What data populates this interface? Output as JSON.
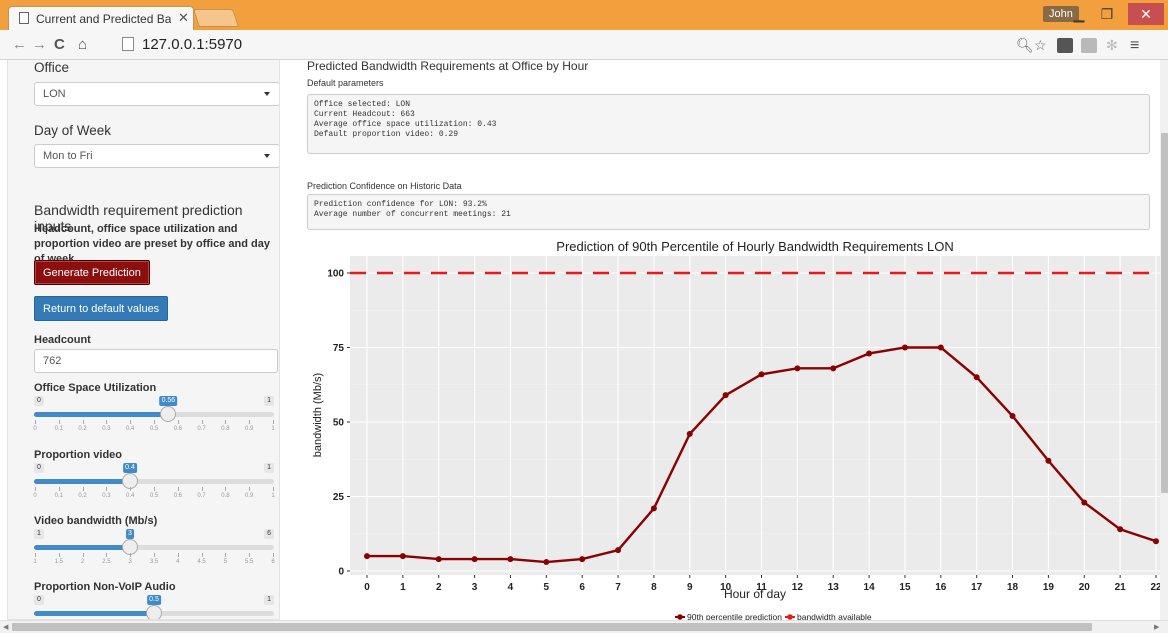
{
  "browser": {
    "tab_title": "Current and Predicted Bar",
    "url": "127.0.0.1:5970",
    "user": "John",
    "accent": "#f2a03d"
  },
  "sidebar": {
    "office_label": "Office",
    "office_value": "LON",
    "day_label": "Day of Week",
    "day_value": "Mon to Fri",
    "inputs_heading": "Bandwidth requirement prediction inputs",
    "inputs_note": "Headcount, office space utilization and proportion video are preset by office and day of week",
    "generate_button": "Generate Prediction",
    "default_button": "Return to default values",
    "headcount_label": "Headcount",
    "headcount_value": "762",
    "sliders": [
      {
        "label": "Office Space Utilization",
        "min": 0,
        "max": 1,
        "value": 0.56,
        "value_label": "0.56",
        "min_label": "0",
        "max_label": "1",
        "ticks": [
          "0",
          "0.1",
          "0.2",
          "0.3",
          "0.4",
          "0.5",
          "0.6",
          "0.7",
          "0.8",
          "0.9",
          "1"
        ]
      },
      {
        "label": "Proportion video",
        "min": 0,
        "max": 1,
        "value": 0.4,
        "value_label": "0.4",
        "min_label": "0",
        "max_label": "1",
        "ticks": [
          "0",
          "0.1",
          "0.2",
          "0.3",
          "0.4",
          "0.5",
          "0.6",
          "0.7",
          "0.8",
          "0.9",
          "1"
        ]
      },
      {
        "label": "Video bandwidth (Mb/s)",
        "min": 1,
        "max": 6,
        "value": 3,
        "value_label": "3",
        "min_label": "1",
        "max_label": "6",
        "ticks": [
          "1",
          "1.5",
          "2",
          "2.5",
          "3",
          "3.5",
          "4",
          "4.5",
          "5",
          "5.5",
          "6"
        ]
      },
      {
        "label": "Proportion Non-VoIP Audio",
        "min": 0,
        "max": 1,
        "value": 0.5,
        "value_label": "0.5",
        "min_label": "0",
        "max_label": "1",
        "ticks": []
      }
    ]
  },
  "main": {
    "title": "Predicted Bandwidth Requirements at Office by Hour",
    "defaults_title": "Default parameters",
    "defaults_lines": [
      "Office selected: LON",
      "Current Headcout: 663",
      "Average office space utilization: 0.43",
      "Default proportion video: 0.29"
    ],
    "confidence_title": "Prediction Confidence on Historic Data",
    "confidence_lines": [
      "Prediction confidence for LON: 93.2%",
      "Average number of concurrent meetings: 21"
    ]
  },
  "chart_data": {
    "type": "line",
    "title": "Prediction of 90th Percentile of Hourly Bandwidth Requirements LON",
    "xlabel": "Hour of day",
    "ylabel": "bandwidth (Mb/s)",
    "x": [
      0,
      1,
      2,
      3,
      4,
      5,
      6,
      7,
      8,
      9,
      10,
      11,
      12,
      13,
      14,
      15,
      16,
      17,
      18,
      19,
      20,
      21,
      22
    ],
    "x_ticks": [
      "0",
      "1",
      "2",
      "3",
      "4",
      "5",
      "6",
      "7",
      "8",
      "9",
      "10",
      "11",
      "12",
      "13",
      "14",
      "15",
      "16",
      "17",
      "18",
      "19",
      "20",
      "21",
      "22"
    ],
    "y_ticks": [
      0,
      25,
      50,
      75,
      100
    ],
    "ylim": [
      0,
      100
    ],
    "series": [
      {
        "name": "90th percentile prediction",
        "color": "#8b0000",
        "values": [
          5,
          5,
          4,
          4,
          4,
          3,
          4,
          7,
          21,
          46,
          59,
          66,
          68,
          68,
          73,
          75,
          75,
          65,
          52,
          37,
          23,
          14,
          10
        ]
      },
      {
        "name": "bandwidth available",
        "color": "#e41a1c",
        "style": "dashed",
        "values_constant": 100
      }
    ],
    "grid": true,
    "legend": "bottom"
  }
}
